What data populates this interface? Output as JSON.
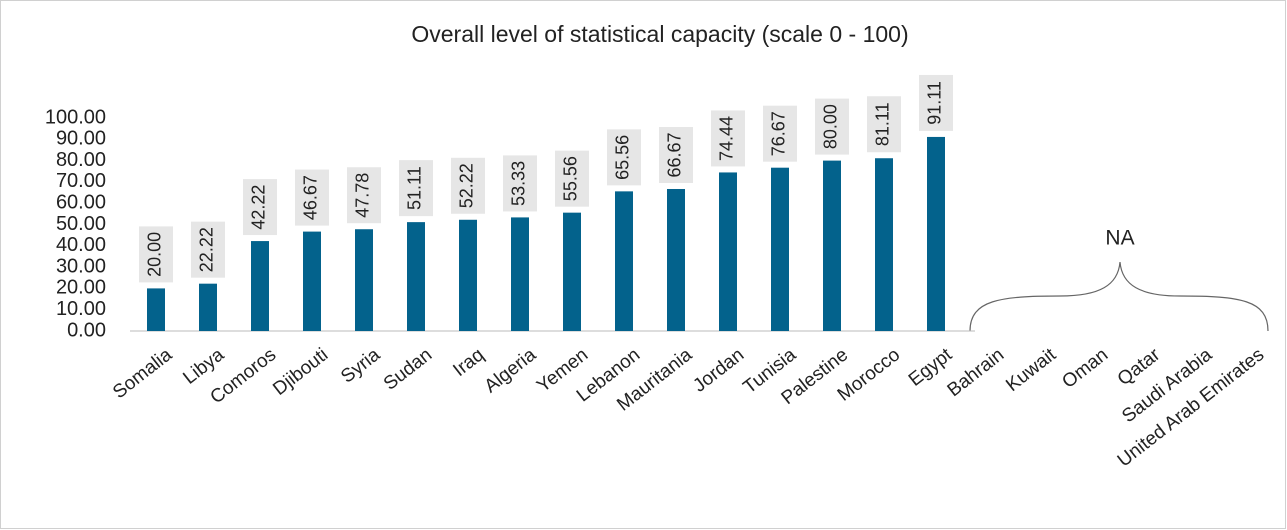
{
  "chart_data": {
    "type": "bar",
    "title": "Overall level of statistical capacity (scale 0 - 100)",
    "categories": [
      "Somalia",
      "Libya",
      "Comoros",
      "Djibouti",
      "Syria",
      "Sudan",
      "Iraq",
      "Algeria",
      "Yemen",
      "Lebanon",
      "Mauritania",
      "Jordan",
      "Tunisia",
      "Palestine",
      "Morocco",
      "Egypt",
      "Bahrain",
      "Kuwait",
      "Oman",
      "Qatar",
      "Saudi Arabia",
      "United Arab Emirates"
    ],
    "values": [
      20,
      22.22,
      42.22,
      46.67,
      47.78,
      51.11,
      52.22,
      53.33,
      55.56,
      65.56,
      66.67,
      74.44,
      76.67,
      80,
      81.11,
      91.11,
      null,
      null,
      null,
      null,
      null,
      null
    ],
    "value_labels": [
      "20.00",
      "22.22",
      "42.22",
      "46.67",
      "47.78",
      "51.11",
      "52.22",
      "53.33",
      "55.56",
      "65.56",
      "66.67",
      "74.44",
      "76.67",
      "80.00",
      "81.11",
      "91.11",
      null,
      null,
      null,
      null,
      null,
      null
    ],
    "color": "#03628c",
    "ylim": [
      0,
      100
    ],
    "yticks": [
      {
        "value": 0,
        "label": "0.00"
      },
      {
        "value": 10,
        "label": "10.00"
      },
      {
        "value": 20,
        "label": "20.00"
      },
      {
        "value": 30,
        "label": "30.00"
      },
      {
        "value": 40,
        "label": "40.00"
      },
      {
        "value": 50,
        "label": "50.00"
      },
      {
        "value": 60,
        "label": "60.00"
      },
      {
        "value": 70,
        "label": "70.00"
      },
      {
        "value": 80,
        "label": "80.00"
      },
      {
        "value": 90,
        "label": "90.00"
      },
      {
        "value": 100,
        "label": "100.00"
      }
    ],
    "grid": false,
    "annotation": "NA"
  }
}
